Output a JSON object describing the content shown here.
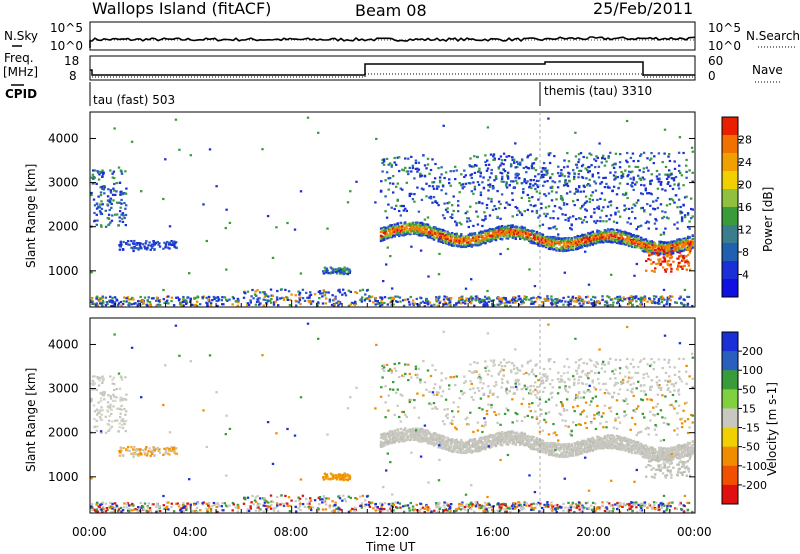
{
  "header": {
    "title": "Wallops Island (fitACF)",
    "beam": "Beam 08",
    "date": "25/Feb/2011"
  },
  "noise_panel": {
    "left_label": "N.Sky",
    "right_label": "N.Search",
    "left_ticks": [
      "10^5",
      "10^0"
    ],
    "right_ticks": [
      "10^5",
      "10^0"
    ]
  },
  "freq_panel": {
    "left_label_1": "Freq.",
    "left_label_2": "[MHz]",
    "left_ticks": [
      "18",
      "8"
    ],
    "right_label": "Nave",
    "right_ticks": [
      "60",
      "0"
    ],
    "cpid_label": "CPID"
  },
  "cpid_segments": [
    {
      "label": "tau (fast) 503",
      "start_hour": 0
    },
    {
      "label": "themis (tau) 3310",
      "start_hour": 18
    }
  ],
  "colors": {
    "blue": "#1a2fd6",
    "green": "#3a9b3a",
    "orange": "#f08c00",
    "red": "#e01010",
    "grey": "#c8c8c0"
  },
  "chart_data": [
    {
      "type": "heatmap",
      "name": "power",
      "ylabel": "Slant Range [km]",
      "xlabel": "",
      "xlim": [
        0,
        24
      ],
      "ylim": [
        180,
        4600
      ],
      "yticks": [
        "4000",
        "3000",
        "2000",
        "1000"
      ],
      "colorbar_label": "Power [dB]",
      "colorbar_range": [
        0,
        32
      ],
      "colorbar_ticks": [
        "28",
        "24",
        "20",
        "16",
        "12",
        "8",
        "4"
      ],
      "colorbar_colors": [
        "#1010e0",
        "#1a2fd6",
        "#2060b0",
        "#3a7e8e",
        "#3a9b3a",
        "#90c040",
        "#f0d000",
        "#f0a000",
        "#f07000",
        "#e82000"
      ]
    },
    {
      "type": "heatmap",
      "name": "velocity",
      "ylabel": "Slant Range [km]",
      "xlabel": "Time UT",
      "xlim": [
        0,
        24
      ],
      "ylim": [
        180,
        4600
      ],
      "yticks": [
        "4000",
        "3000",
        "2000",
        "1000"
      ],
      "xticks": [
        "00:00",
        "04:00",
        "08:00",
        "12:00",
        "16:00",
        "20:00",
        "00:00"
      ],
      "colorbar_label": "Velocity [m s-1]",
      "colorbar_ticks": [
        "200",
        "100",
        "50",
        "15",
        "-15",
        "-50",
        "-100",
        "-200"
      ],
      "colorbar_colors": [
        "#1a2fd6",
        "#2a5fc0",
        "#3a9b3a",
        "#80d040",
        "#c8c8c0",
        "#f0d000",
        "#f08c00",
        "#f05000",
        "#e01010"
      ]
    }
  ]
}
